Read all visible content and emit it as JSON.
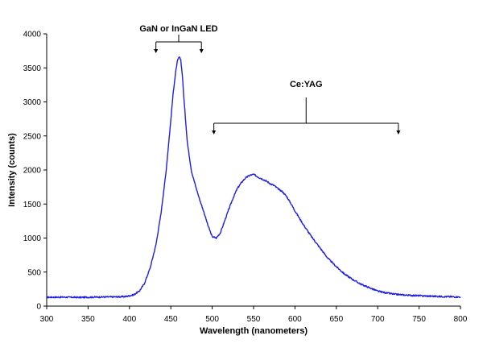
{
  "chart_data": {
    "type": "line",
    "title": "",
    "xlabel": "Wavelength (nanometers)",
    "ylabel": "Intensity (counts)",
    "xlim": [
      300,
      800
    ],
    "ylim": [
      0,
      4000
    ],
    "grid": false,
    "legend": "none",
    "line_color": "#1f1fe6",
    "x_ticks": [
      "300",
      "350",
      "400",
      "450",
      "500",
      "550",
      "600",
      "650",
      "700",
      "750",
      "800"
    ],
    "y_ticks": [
      "0",
      "500",
      "1000",
      "1500",
      "2000",
      "2500",
      "3000",
      "3500",
      "4000"
    ],
    "series": [
      {
        "x": [
          300,
          320,
          340,
          360,
          380,
          395,
          405,
          412,
          418,
          425,
          432,
          438,
          444,
          449,
          453,
          456,
          458,
          460,
          462,
          464,
          466,
          470,
          475,
          480,
          485,
          490,
          495,
          500,
          505,
          510,
          515,
          520,
          525,
          530,
          535,
          540,
          545,
          550,
          555,
          560,
          565,
          570,
          575,
          580,
          585,
          590,
          595,
          600,
          605,
          610,
          615,
          620,
          625,
          630,
          635,
          640,
          645,
          650,
          660,
          670,
          680,
          690,
          700,
          710,
          720,
          730,
          740,
          760,
          780,
          800
        ],
        "y": [
          130,
          132,
          128,
          133,
          135,
          140,
          165,
          220,
          330,
          560,
          900,
          1350,
          1950,
          2600,
          3150,
          3450,
          3600,
          3660,
          3620,
          3380,
          3020,
          2400,
          1980,
          1760,
          1560,
          1380,
          1180,
          1020,
          1000,
          1080,
          1250,
          1420,
          1580,
          1720,
          1810,
          1880,
          1920,
          1935,
          1900,
          1870,
          1840,
          1800,
          1770,
          1720,
          1680,
          1610,
          1510,
          1400,
          1300,
          1200,
          1110,
          1020,
          940,
          860,
          780,
          700,
          640,
          580,
          470,
          390,
          320,
          270,
          220,
          195,
          175,
          165,
          158,
          148,
          140,
          135
        ]
      }
    ],
    "annotations": [
      {
        "text": "GaN or InGaN  LED",
        "x_range": [
          432,
          487
        ]
      },
      {
        "text": "Ce:YAG",
        "x_range": [
          502,
          725
        ]
      }
    ]
  }
}
